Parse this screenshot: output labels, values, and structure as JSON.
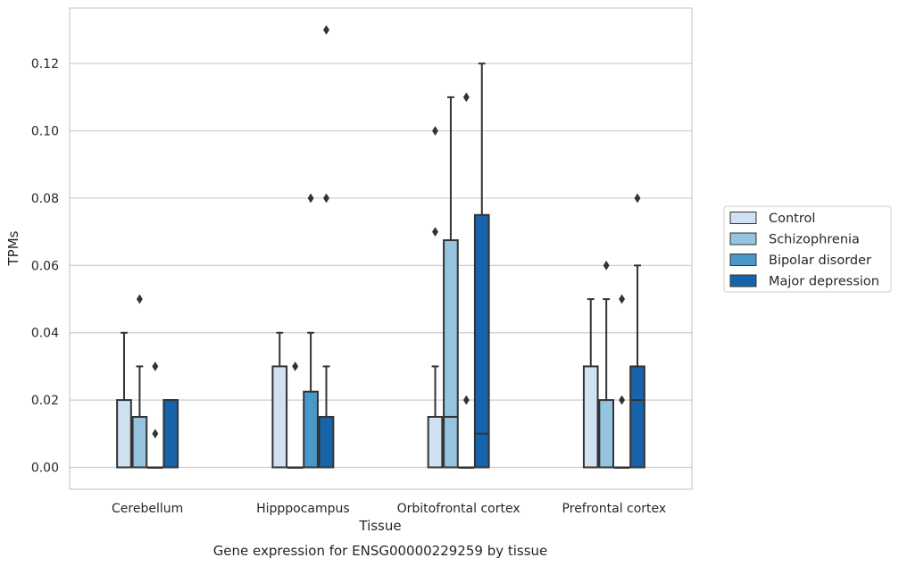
{
  "chart_data": {
    "type": "box",
    "xlabel": "Tissue",
    "ylabel": "TPMs",
    "caption": "Gene expression for ENSG00000229259 by tissue",
    "ylim": [
      -0.0065,
      0.1365
    ],
    "yticks": [
      "0.00",
      "0.02",
      "0.04",
      "0.06",
      "0.08",
      "0.10",
      "0.12"
    ],
    "grid": true,
    "legend_position": "right",
    "categories": [
      "Cerebellum",
      "Hipppocampus",
      "Orbitofrontal cortex",
      "Prefrontal cortex"
    ],
    "series": [
      {
        "name": "Control",
        "color": "#d0e1f2",
        "boxes": [
          {
            "whislo": 0,
            "q1": 0,
            "med": 0,
            "q3": 0.02,
            "whishi": 0.04,
            "fliers": []
          },
          {
            "whislo": 0,
            "q1": 0,
            "med": 0,
            "q3": 0.03,
            "whishi": 0.04,
            "fliers": []
          },
          {
            "whislo": 0,
            "q1": 0,
            "med": 0,
            "q3": 0.015,
            "whishi": 0.03,
            "fliers": [
              0.07,
              0.1
            ]
          },
          {
            "whislo": 0,
            "q1": 0,
            "med": 0,
            "q3": 0.03,
            "whishi": 0.05,
            "fliers": []
          }
        ]
      },
      {
        "name": "Schizophrenia",
        "color": "#94c4df",
        "boxes": [
          {
            "whislo": 0,
            "q1": 0,
            "med": 0,
            "q3": 0.015,
            "whishi": 0.03,
            "fliers": [
              0.05
            ]
          },
          {
            "whislo": 0,
            "q1": 0,
            "med": 0,
            "q3": 0,
            "whishi": 0,
            "fliers": [
              0.03
            ]
          },
          {
            "whislo": 0,
            "q1": 0,
            "med": 0.015,
            "q3": 0.0675,
            "whishi": 0.11,
            "fliers": []
          },
          {
            "whislo": 0,
            "q1": 0,
            "med": 0,
            "q3": 0.02,
            "whishi": 0.05,
            "fliers": [
              0.06
            ]
          }
        ]
      },
      {
        "name": "Bipolar disorder",
        "color": "#4a98c9",
        "boxes": [
          {
            "whislo": 0,
            "q1": 0,
            "med": 0,
            "q3": 0,
            "whishi": 0,
            "fliers": [
              0.01,
              0.03
            ]
          },
          {
            "whislo": 0,
            "q1": 0,
            "med": 0,
            "q3": 0.0225,
            "whishi": 0.04,
            "fliers": [
              0.08
            ]
          },
          {
            "whislo": 0,
            "q1": 0,
            "med": 0,
            "q3": 0,
            "whishi": 0,
            "fliers": [
              0.02,
              0.11
            ]
          },
          {
            "whislo": 0,
            "q1": 0,
            "med": 0,
            "q3": 0,
            "whishi": 0,
            "fliers": [
              0.02,
              0.05
            ]
          }
        ]
      },
      {
        "name": "Major depression",
        "color": "#1764ab",
        "boxes": [
          {
            "whislo": 0,
            "q1": 0,
            "med": 0.02,
            "q3": 0.02,
            "whishi": 0.02,
            "fliers": []
          },
          {
            "whislo": 0,
            "q1": 0,
            "med": 0,
            "q3": 0.015,
            "whishi": 0.03,
            "fliers": [
              0.08,
              0.13
            ]
          },
          {
            "whislo": 0,
            "q1": 0,
            "med": 0.01,
            "q3": 0.075,
            "whishi": 0.12,
            "fliers": []
          },
          {
            "whislo": 0,
            "q1": 0,
            "med": 0.02,
            "q3": 0.03,
            "whishi": 0.06,
            "fliers": [
              0.08
            ]
          }
        ]
      }
    ]
  },
  "style": {
    "edge_color": "#333333",
    "grid_color": "#cccccc",
    "spine_color": "#cccccc"
  }
}
